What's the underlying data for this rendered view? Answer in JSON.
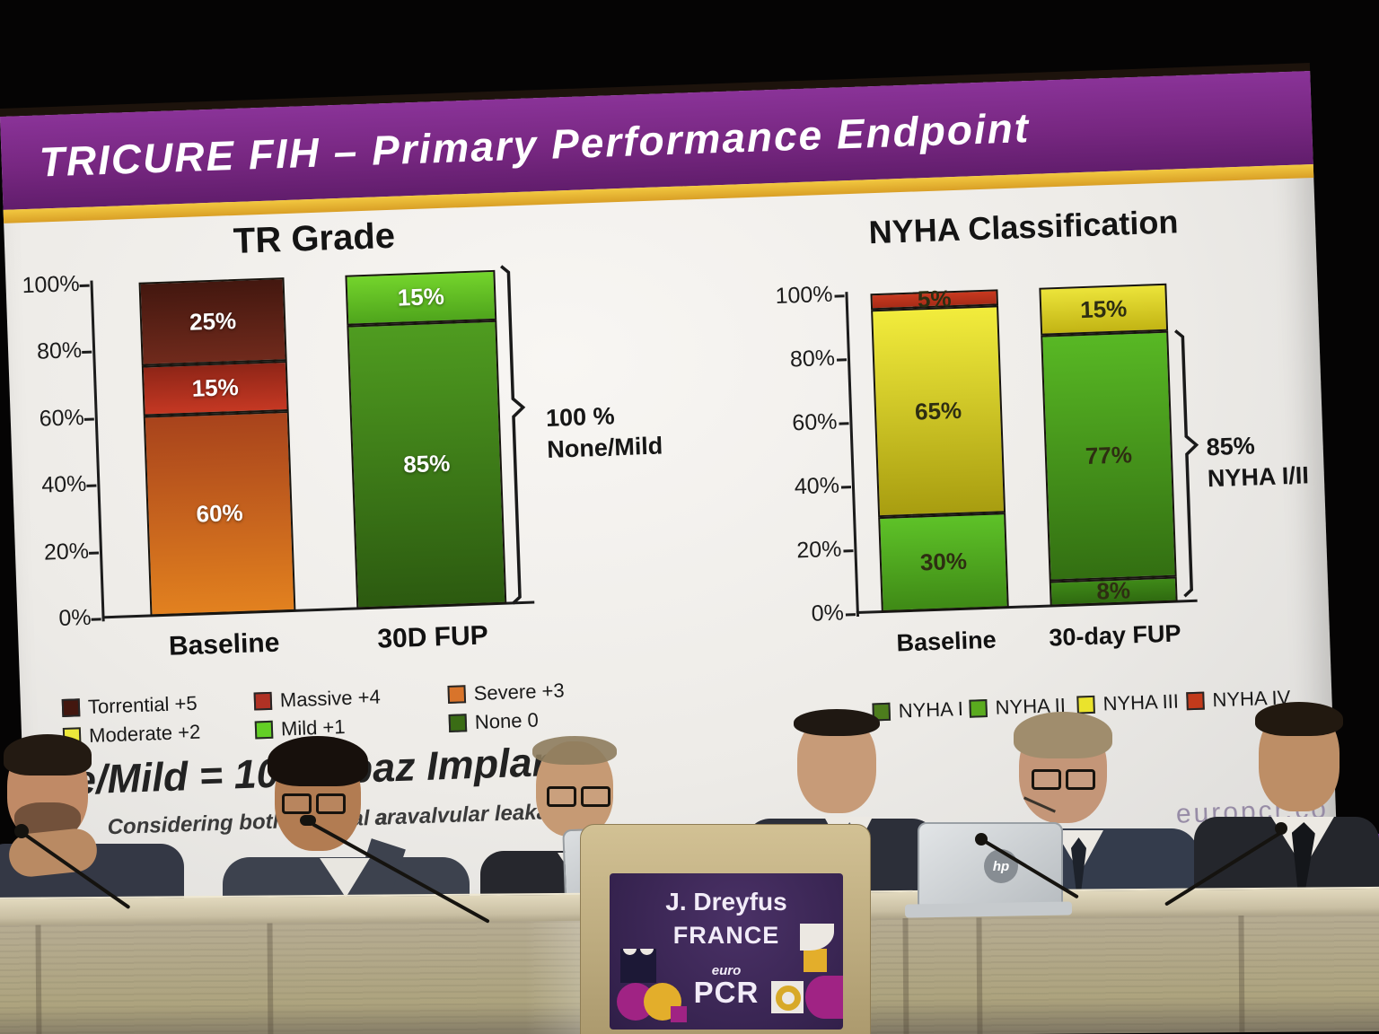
{
  "screen": {
    "banner_title": "TRICURE FIH – Primary Performance Endpoint",
    "banner_color": "#772781",
    "accent_stripe_color": "#e9b437",
    "footer_bar_color": "#5a2d7d",
    "watermark": "europcr.co"
  },
  "tr_chart": {
    "title": "TR Grade",
    "y_tick_labels": [
      "100%",
      "80%",
      "60%",
      "40%",
      "20%",
      "0%"
    ],
    "x_labels": [
      "Baseline",
      "30D FUP"
    ],
    "bars": {
      "baseline": [
        {
          "name": "Severe +3",
          "pct": 60,
          "c1": "#a8431c",
          "c2": "#e2811f"
        },
        {
          "name": "Massive +4",
          "pct": 15,
          "c1": "#8e2517",
          "c2": "#c53823"
        },
        {
          "name": "Torrential +5",
          "pct": 25,
          "c1": "#43170f",
          "c2": "#702a1c"
        }
      ],
      "fup": [
        {
          "name": "None 0",
          "pct": 85,
          "c1": "#4f9c20",
          "c2": "#2c5a10"
        },
        {
          "name": "Mild +1",
          "pct": 15,
          "c1": "#74d42c",
          "c2": "#4fa51c"
        }
      ]
    },
    "annotation": {
      "line1": "100 %",
      "line2": "None/Mild"
    },
    "legend": [
      {
        "label": "Torrential +5",
        "color": "#43170f"
      },
      {
        "label": "Massive +4",
        "color": "#b03124"
      },
      {
        "label": "Severe +3",
        "color": "#d8742b"
      },
      {
        "label": "Moderate +2",
        "color": "#ede93b"
      },
      {
        "label": "Mild +1",
        "color": "#63cf25"
      },
      {
        "label": "None 0",
        "color": "#3a6c15"
      }
    ]
  },
  "nyha_chart": {
    "title": "NYHA Classification",
    "y_tick_labels": [
      "100%",
      "80%",
      "60%",
      "40%",
      "20%",
      "0%"
    ],
    "x_labels": [
      "Baseline",
      "30-day FUP"
    ],
    "bars": {
      "baseline": [
        {
          "name": "NYHA II",
          "pct": 30,
          "c1": "#5ec228",
          "c2": "#3f8a16"
        },
        {
          "name": "NYHA III",
          "pct": 65,
          "c1": "#f2ec3c",
          "c2": "#a89d10"
        },
        {
          "name": "NYHA IV",
          "pct": 5,
          "c1": "#c8391f",
          "c2": "#a82c18"
        }
      ],
      "fup": [
        {
          "name": "NYHA I",
          "pct": 8,
          "c1": "#3f8a18",
          "c2": "#2f6a10"
        },
        {
          "name": "NYHA II",
          "pct": 77,
          "c1": "#58b824",
          "c2": "#336f12"
        },
        {
          "name": "NYHA III",
          "pct": 15,
          "c1": "#ece43a",
          "c2": "#c2b414"
        }
      ]
    },
    "annotation": {
      "line1": "85%",
      "line2": "NYHA I/II"
    },
    "legend": [
      {
        "label": "NYHA I",
        "color": "#4d7d1d"
      },
      {
        "label": "NYHA II",
        "color": "#5aab1e"
      },
      {
        "label": "NYHA III",
        "color": "#eae32c"
      },
      {
        "label": "NYHA IV",
        "color": "#c23a1b"
      }
    ]
  },
  "slide_footnotes": {
    "line1_left": "e/Mild = 100%",
    "line1_right": "paz Implant",
    "line2_left": "Considering both: central a",
    "line2_right": "aravalvular leakage"
  },
  "podium": {
    "speaker_name": "J. Dreyfus",
    "speaker_country": "FRANCE",
    "logo_top": "euro",
    "logo_main": "PCR"
  },
  "laptop": {
    "brand": "hp"
  },
  "chart_data": [
    {
      "type": "bar",
      "stacked": true,
      "title": "TR Grade",
      "categories": [
        "Baseline",
        "30D FUP"
      ],
      "series": [
        {
          "name": "None 0",
          "values": [
            0,
            85
          ]
        },
        {
          "name": "Mild +1",
          "values": [
            0,
            15
          ]
        },
        {
          "name": "Moderate +2",
          "values": [
            0,
            0
          ]
        },
        {
          "name": "Severe +3",
          "values": [
            60,
            0
          ]
        },
        {
          "name": "Massive +4",
          "values": [
            15,
            0
          ]
        },
        {
          "name": "Torrential +5",
          "values": [
            25,
            0
          ]
        }
      ],
      "ylabel": "",
      "ylim": [
        0,
        100
      ],
      "y_ticks": [
        0,
        20,
        40,
        60,
        80,
        100
      ],
      "annotation": "100 % None/Mild at 30D FUP",
      "legend_position": "bottom"
    },
    {
      "type": "bar",
      "stacked": true,
      "title": "NYHA Classification",
      "categories": [
        "Baseline",
        "30-day FUP"
      ],
      "series": [
        {
          "name": "NYHA I",
          "values": [
            0,
            8
          ]
        },
        {
          "name": "NYHA II",
          "values": [
            30,
            77
          ]
        },
        {
          "name": "NYHA III",
          "values": [
            65,
            15
          ]
        },
        {
          "name": "NYHA IV",
          "values": [
            5,
            0
          ]
        }
      ],
      "ylabel": "",
      "ylim": [
        0,
        100
      ],
      "y_ticks": [
        0,
        20,
        40,
        60,
        80,
        100
      ],
      "annotation": "85% NYHA I/II at 30-day FUP",
      "legend_position": "bottom"
    }
  ]
}
